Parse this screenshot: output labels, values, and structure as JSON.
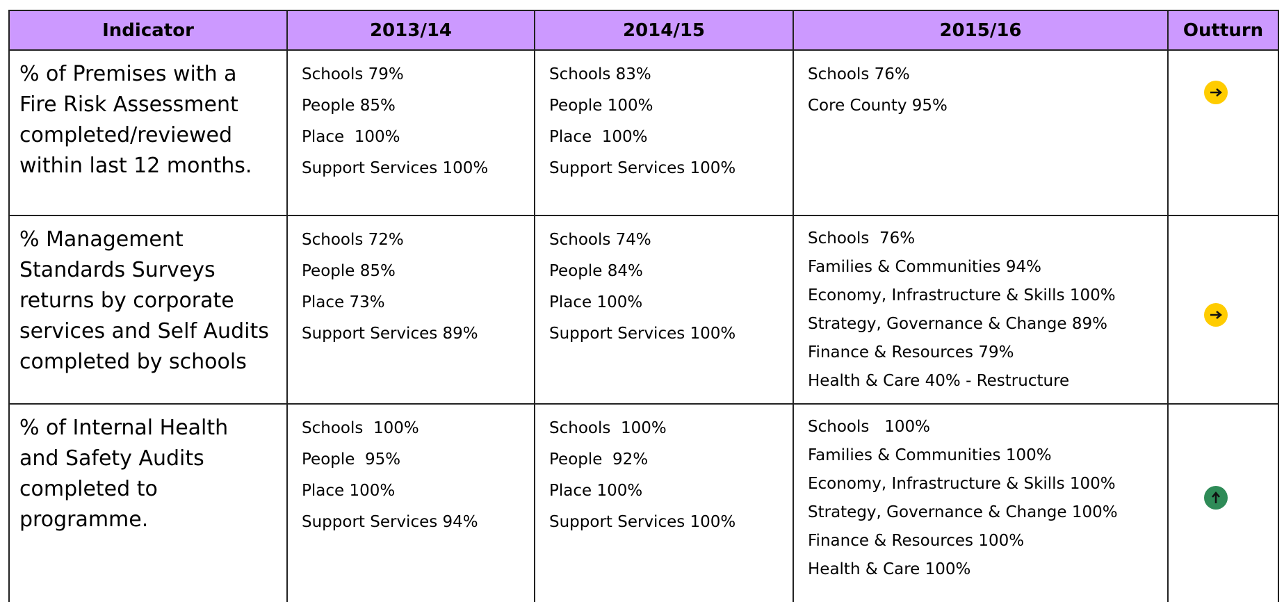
{
  "table": {
    "headers": [
      "Indicator",
      "2013/14",
      "2014/15",
      "2015/16",
      "Outturn"
    ],
    "rows": [
      {
        "indicator": [
          "% of Premises with a",
          "Fire Risk Assessment",
          "completed/reviewed",
          "within last 12 months."
        ],
        "cells": [
          [
            "Schools 79%",
            "People 85%",
            "Place  100%",
            "Support Services 100%"
          ],
          [
            "Schools 83%",
            "People 100%",
            "Place  100%",
            "Support Services 100%"
          ],
          [
            "Schools 76%",
            "Core County 95%"
          ]
        ]
      },
      {
        "indicator": [
          "% Management",
          "Standards Surveys",
          "returns by corporate",
          "services and Self Audits",
          "completed by schools"
        ],
        "cells": [
          [
            "Schools 72%",
            "People 85%",
            "Place 73%",
            "Support Services 89%"
          ],
          [
            "Schools 74%",
            "People 84%",
            "Place 100%",
            "Support Services 100%"
          ],
          [
            "Schools  76%",
            "Families & Communities 94%",
            "Economy, Infrastructure & Skills 100%",
            "Strategy, Governance & Change 89%",
            "Finance & Resources 79%",
            "Health & Care 40% - Restructure"
          ]
        ]
      },
      {
        "indicator": [
          "% of Internal Health",
          "and Safety Audits",
          "completed to",
          "programme."
        ],
        "cells": [
          [
            "Schools  100%",
            "People  95%",
            "Place 100%",
            "Support Services 94%"
          ],
          [
            "Schools  100%",
            "People  92%",
            "Place 100%",
            "Support Services 100%"
          ],
          [
            "Schools   100%",
            "Families & Communities 100%",
            "Economy, Infrastructure & Skills 100%",
            "Strategy, Governance & Change 100%",
            "Finance & Resources 100%",
            "Health & Care 100%"
          ]
        ]
      }
    ]
  }
}
